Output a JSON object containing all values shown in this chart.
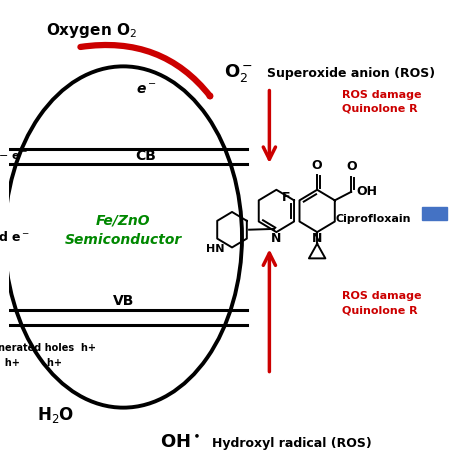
{
  "bg_color": "#ffffff",
  "red_color": "#cc0000",
  "green_color": "#008800",
  "black_color": "#000000",
  "blue_rect_color": "#4472c4",
  "CB_label": "CB",
  "VB_label": "VB",
  "semiconductor_label": "Fe/ZnO\nSemiconductor",
  "ciprofloxacin_label": "Ciprofloxain",
  "ros_damage_top": "ROS damage\nQuinolone R",
  "ros_damage_bot": "ROS damage\nQuinolone R",
  "hydroxyl_label": "Hydroxyl radical (ROS)",
  "superoxide_label": "Superoxide anion (ROS)"
}
